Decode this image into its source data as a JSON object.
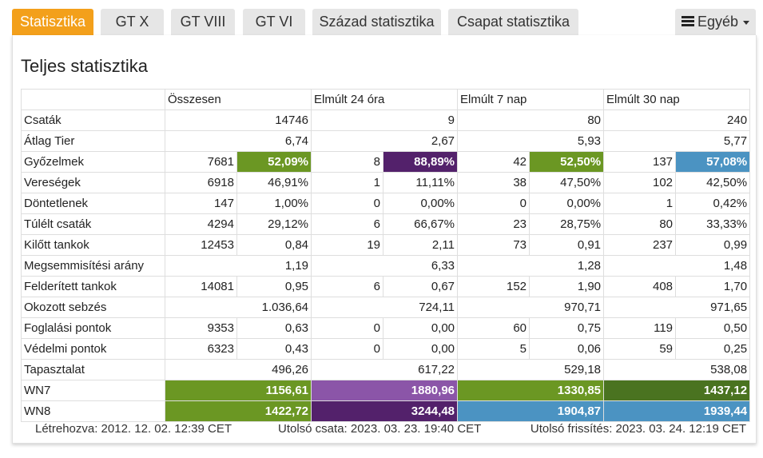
{
  "tabs": [
    {
      "label": "Statisztika",
      "active": true
    },
    {
      "label": "GT X"
    },
    {
      "label": "GT VIII"
    },
    {
      "label": "GT VI"
    },
    {
      "label": "Század statisztika"
    },
    {
      "label": "Csapat statisztika"
    }
  ],
  "more_menu": {
    "label": "Egyéb",
    "icon": "hamburger-icon"
  },
  "title": "Teljes statisztika",
  "columns": [
    "Összesen",
    "Elmúlt 24 óra",
    "Elmúlt 7 nap",
    "Elmúlt 30 nap"
  ],
  "colors": {
    "accent": "#f3a01b",
    "green": "#6b9723",
    "dark_green": "#4a7320",
    "purple": "#53216b",
    "light_purple": "#8b55a8",
    "blue": "#4b93c2"
  },
  "rows": [
    {
      "label": "Csaták",
      "cells": [
        {
          "v": "14746"
        },
        {
          "v": "9"
        },
        {
          "v": "80"
        },
        {
          "v": "240"
        }
      ]
    },
    {
      "label": "Átlag Tier",
      "cells": [
        {
          "v": "6,74"
        },
        {
          "v": "2,67"
        },
        {
          "v": "5,93"
        },
        {
          "v": "5,77"
        }
      ]
    },
    {
      "label": "Győzelmek",
      "cells": [
        {
          "n": "7681",
          "p": "52,09%",
          "c": "#6b9723"
        },
        {
          "n": "8",
          "p": "88,89%",
          "c": "#53216b"
        },
        {
          "n": "42",
          "p": "52,50%",
          "c": "#6b9723"
        },
        {
          "n": "137",
          "p": "57,08%",
          "c": "#4b93c2"
        }
      ]
    },
    {
      "label": "Vereségek",
      "cells": [
        {
          "n": "6918",
          "p": "46,91%"
        },
        {
          "n": "1",
          "p": "11,11%"
        },
        {
          "n": "38",
          "p": "47,50%"
        },
        {
          "n": "102",
          "p": "42,50%"
        }
      ]
    },
    {
      "label": "Döntetlenek",
      "cells": [
        {
          "n": "147",
          "p": "1,00%"
        },
        {
          "n": "0",
          "p": "0,00%"
        },
        {
          "n": "0",
          "p": "0,00%"
        },
        {
          "n": "1",
          "p": "0,42%"
        }
      ]
    },
    {
      "label": "Túlélt csaták",
      "cells": [
        {
          "n": "4294",
          "p": "29,12%"
        },
        {
          "n": "6",
          "p": "66,67%"
        },
        {
          "n": "23",
          "p": "28,75%"
        },
        {
          "n": "80",
          "p": "33,33%"
        }
      ]
    },
    {
      "label": "Kilőtt tankok",
      "cells": [
        {
          "n": "12453",
          "p": "0,84"
        },
        {
          "n": "19",
          "p": "2,11"
        },
        {
          "n": "73",
          "p": "0,91"
        },
        {
          "n": "237",
          "p": "0,99"
        }
      ]
    },
    {
      "label": "Megsemmisítési arány",
      "cells": [
        {
          "v": "1,19"
        },
        {
          "v": "6,33"
        },
        {
          "v": "1,28"
        },
        {
          "v": "1,48"
        }
      ]
    },
    {
      "label": "Felderített tankok",
      "cells": [
        {
          "n": "14081",
          "p": "0,95"
        },
        {
          "n": "6",
          "p": "0,67"
        },
        {
          "n": "152",
          "p": "1,90"
        },
        {
          "n": "408",
          "p": "1,70"
        }
      ]
    },
    {
      "label": "Okozott sebzés",
      "cells": [
        {
          "v": "1.036,64"
        },
        {
          "v": "724,11"
        },
        {
          "v": "970,71"
        },
        {
          "v": "971,65"
        }
      ]
    },
    {
      "label": "Foglalási pontok",
      "cells": [
        {
          "n": "9353",
          "p": "0,63"
        },
        {
          "n": "0",
          "p": "0,00"
        },
        {
          "n": "60",
          "p": "0,75"
        },
        {
          "n": "119",
          "p": "0,50"
        }
      ]
    },
    {
      "label": "Védelmi pontok",
      "cells": [
        {
          "n": "6323",
          "p": "0,43"
        },
        {
          "n": "0",
          "p": "0,00"
        },
        {
          "n": "5",
          "p": "0,06"
        },
        {
          "n": "59",
          "p": "0,25"
        }
      ]
    },
    {
      "label": "Tapasztalat",
      "cells": [
        {
          "v": "496,26"
        },
        {
          "v": "617,22"
        },
        {
          "v": "529,18"
        },
        {
          "v": "538,08"
        }
      ]
    },
    {
      "label": "WN7",
      "cells": [
        {
          "v": "1156,61",
          "c": "#6b9723"
        },
        {
          "v": "1880,96",
          "c": "#8b55a8"
        },
        {
          "v": "1330,85",
          "c": "#6b9723"
        },
        {
          "v": "1437,12",
          "c": "#4a7320"
        }
      ]
    },
    {
      "label": "WN8",
      "cells": [
        {
          "v": "1422,72",
          "c": "#6b9723"
        },
        {
          "v": "3244,48",
          "c": "#53216b"
        },
        {
          "v": "1904,87",
          "c": "#4b93c2"
        },
        {
          "v": "1939,44",
          "c": "#4b93c2"
        }
      ]
    }
  ],
  "footer": {
    "created": "Létrehozva: 2012. 12. 02. 12:39 CET",
    "last_battle": "Utolsó csata: 2023. 03. 23. 19:40 CET",
    "last_update": "Utolsó frissítés: 2023. 03. 24. 12:19 CET"
  }
}
